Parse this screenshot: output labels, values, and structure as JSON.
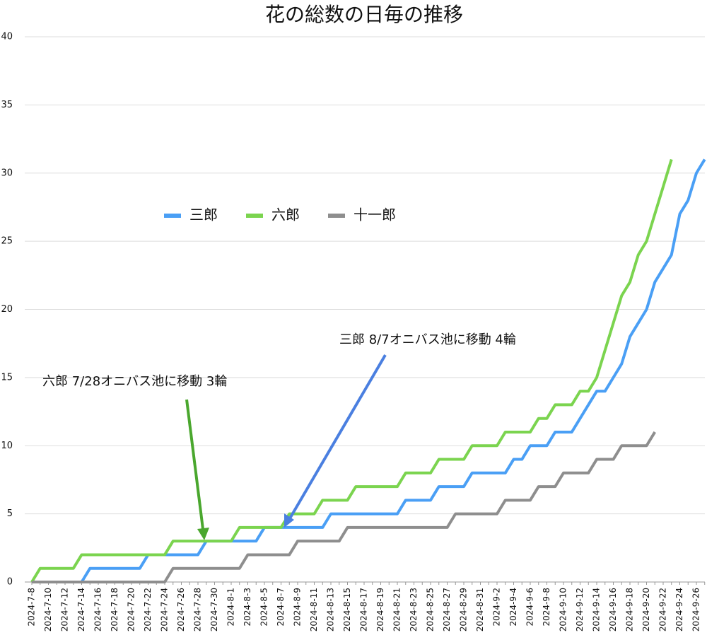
{
  "chart_data": {
    "type": "line",
    "title": "花の総数の日毎の推移",
    "categories": [
      "2024-7-8",
      null,
      "2024-7-10",
      null,
      "2024-7-12",
      null,
      "2024-7-14",
      null,
      "2024-7-16",
      null,
      "2024-7-18",
      null,
      "2024-7-20",
      null,
      "2024-7-22",
      null,
      "2024-7-24",
      null,
      "2024-7-26",
      null,
      "2024-7-28",
      null,
      "2024-7-30",
      null,
      "2024-8-1",
      null,
      "2024-8-3",
      null,
      "2024-8-5",
      null,
      "2024-8-7",
      null,
      "2024-8-9",
      null,
      "2024-8-11",
      null,
      "2024-8-13",
      null,
      "2024-8-15",
      null,
      "2024-8-17",
      null,
      "2024-8-19",
      null,
      "2024-8-21",
      null,
      "2024-8-23",
      null,
      "2024-8-25",
      null,
      "2024-8-27",
      null,
      "2024-8-29",
      null,
      "2024-8-31",
      null,
      "2024-9-2",
      null,
      "2024-9-4",
      null,
      "2024-9-6",
      null,
      "2024-9-8",
      null,
      "2024-9-10",
      null,
      "2024-9-12",
      null,
      "2024-9-14",
      null,
      "2024-9-16",
      null,
      "2024-9-18",
      null,
      "2024-9-20",
      null,
      "2024-9-22",
      null,
      "2024-9-24",
      null,
      "2024-9-26",
      null
    ],
    "series": [
      {
        "name": "三郎",
        "color": "#4a9ff5",
        "values": [
          0,
          0,
          0,
          0,
          0,
          0,
          0,
          1,
          1,
          1,
          1,
          1,
          1,
          1,
          2,
          2,
          2,
          2,
          2,
          2,
          2,
          3,
          3,
          3,
          3,
          3,
          3,
          3,
          4,
          4,
          4,
          4,
          4,
          4,
          4,
          4,
          5,
          5,
          5,
          5,
          5,
          5,
          5,
          5,
          5,
          6,
          6,
          6,
          6,
          7,
          7,
          7,
          7,
          8,
          8,
          8,
          8,
          8,
          9,
          9,
          10,
          10,
          10,
          11,
          11,
          11,
          12,
          13,
          14,
          14,
          15,
          16,
          18,
          19,
          20,
          22,
          23,
          24,
          27,
          28,
          30,
          31
        ]
      },
      {
        "name": "六郎",
        "color": "#7bd44f",
        "values": [
          0,
          1,
          1,
          1,
          1,
          1,
          2,
          2,
          2,
          2,
          2,
          2,
          2,
          2,
          2,
          2,
          2,
          3,
          3,
          3,
          3,
          3,
          3,
          3,
          3,
          4,
          4,
          4,
          4,
          4,
          4,
          5,
          5,
          5,
          5,
          6,
          6,
          6,
          6,
          7,
          7,
          7,
          7,
          7,
          7,
          8,
          8,
          8,
          8,
          9,
          9,
          9,
          9,
          10,
          10,
          10,
          10,
          11,
          11,
          11,
          11,
          12,
          12,
          13,
          13,
          13,
          14,
          14,
          15,
          17,
          19,
          21,
          22,
          24,
          25,
          27,
          29,
          31,
          null,
          null,
          null,
          null
        ]
      },
      {
        "name": "十一郎",
        "color": "#8e8e8e",
        "values": [
          0,
          0,
          0,
          0,
          0,
          0,
          0,
          0,
          0,
          0,
          0,
          0,
          0,
          0,
          0,
          0,
          0,
          1,
          1,
          1,
          1,
          1,
          1,
          1,
          1,
          1,
          2,
          2,
          2,
          2,
          2,
          2,
          3,
          3,
          3,
          3,
          3,
          3,
          4,
          4,
          4,
          4,
          4,
          4,
          4,
          4,
          4,
          4,
          4,
          4,
          4,
          5,
          5,
          5,
          5,
          5,
          5,
          6,
          6,
          6,
          6,
          7,
          7,
          7,
          8,
          8,
          8,
          8,
          9,
          9,
          9,
          10,
          10,
          10,
          10,
          11,
          null,
          null,
          null,
          null,
          null,
          null
        ]
      }
    ],
    "ylim": [
      0,
      40
    ],
    "yticks": [
      0,
      5,
      10,
      15,
      20,
      25,
      30,
      35,
      40
    ],
    "grid": true,
    "annotations": [
      "六郎 7/28オニバス池に移動 3輪",
      "三郎 8/7オニバス池に移動 4輪"
    ]
  }
}
